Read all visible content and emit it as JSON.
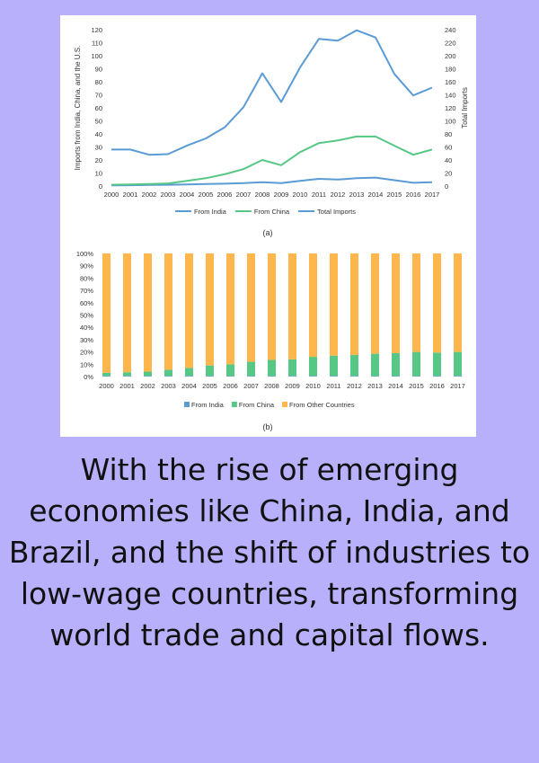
{
  "chart_data": [
    {
      "type": "line",
      "caption": "(a)",
      "x": [
        "2000",
        "2001",
        "2002",
        "2003",
        "2004",
        "2005",
        "2006",
        "2007",
        "2008",
        "2009",
        "2010",
        "2011",
        "2012",
        "2013",
        "2014",
        "2015",
        "2016",
        "2017"
      ],
      "ylabel": "Imports from India, China, and the U.S.",
      "y2label": "Total Imports",
      "ylim": [
        0,
        120
      ],
      "yticks": [
        0,
        10,
        20,
        30,
        40,
        50,
        60,
        70,
        80,
        90,
        100,
        110,
        120
      ],
      "y2lim": [
        0,
        240
      ],
      "y2ticks": [
        0,
        20,
        40,
        60,
        80,
        100,
        120,
        140,
        160,
        180,
        200,
        220,
        240
      ],
      "legend_position": "bottom",
      "grid": false,
      "series": [
        {
          "name": "From India",
          "axis": "left",
          "color": "#5b9bd5",
          "values": [
            0.5,
            0.6,
            0.8,
            1,
            1.2,
            1.5,
            1.8,
            2.2,
            3,
            2.2,
            4,
            5.5,
            5,
            6,
            6.5,
            4.5,
            2.5,
            3
          ]
        },
        {
          "name": "From China",
          "axis": "left",
          "color": "#57c785",
          "values": [
            1,
            1.2,
            1.5,
            2,
            4,
            6,
            9,
            13,
            20,
            16,
            26,
            33,
            35,
            38,
            38,
            31,
            24,
            28
          ]
        },
        {
          "name": "Total Imports",
          "axis": "right",
          "color": "#5b9bd5",
          "values": [
            56,
            56,
            48,
            49,
            62,
            73,
            90,
            121,
            173,
            129,
            182,
            226,
            223,
            239,
            228,
            172,
            139,
            151
          ]
        }
      ]
    },
    {
      "type": "bar",
      "stacked": true,
      "caption": "(b)",
      "categories": [
        "2000",
        "2001",
        "2002",
        "2003",
        "2004",
        "2005",
        "2006",
        "2007",
        "2008",
        "2009",
        "2010",
        "2011",
        "2012",
        "2013",
        "2014",
        "2015",
        "2016",
        "2017"
      ],
      "ylim": [
        0,
        100
      ],
      "yticks": [
        "0%",
        "10%",
        "20%",
        "30%",
        "40%",
        "50%",
        "60%",
        "70%",
        "80%",
        "90%",
        "100%"
      ],
      "legend_position": "bottom",
      "grid": false,
      "series": [
        {
          "name": "From India",
          "color": "#5b9bd5",
          "values": [
            0.5,
            0.5,
            0.5,
            0.5,
            0.5,
            0.5,
            0.5,
            0.5,
            0.5,
            0.5,
            0.5,
            0.5,
            0.5,
            0.5,
            0.5,
            0.5,
            0.5,
            0.5
          ]
        },
        {
          "name": "From China",
          "color": "#57c785",
          "values": [
            2.5,
            3,
            3.5,
            5,
            6.5,
            8.5,
            9.5,
            11.5,
            13,
            13.5,
            15.5,
            16.5,
            17,
            18,
            18.5,
            19.5,
            19,
            19.5
          ]
        },
        {
          "name": "From Other Countries",
          "color": "#ffb74d",
          "values": [
            97,
            96.5,
            96,
            94.5,
            93,
            91,
            90,
            88,
            86.5,
            86,
            84,
            83,
            82.5,
            81.5,
            81,
            80,
            80.5,
            80
          ]
        }
      ]
    }
  ],
  "caption_text": "With the rise of emerging economies like China, India, and Brazil, and the shift of industries to low-wage countries, transforming world trade and capital flows."
}
